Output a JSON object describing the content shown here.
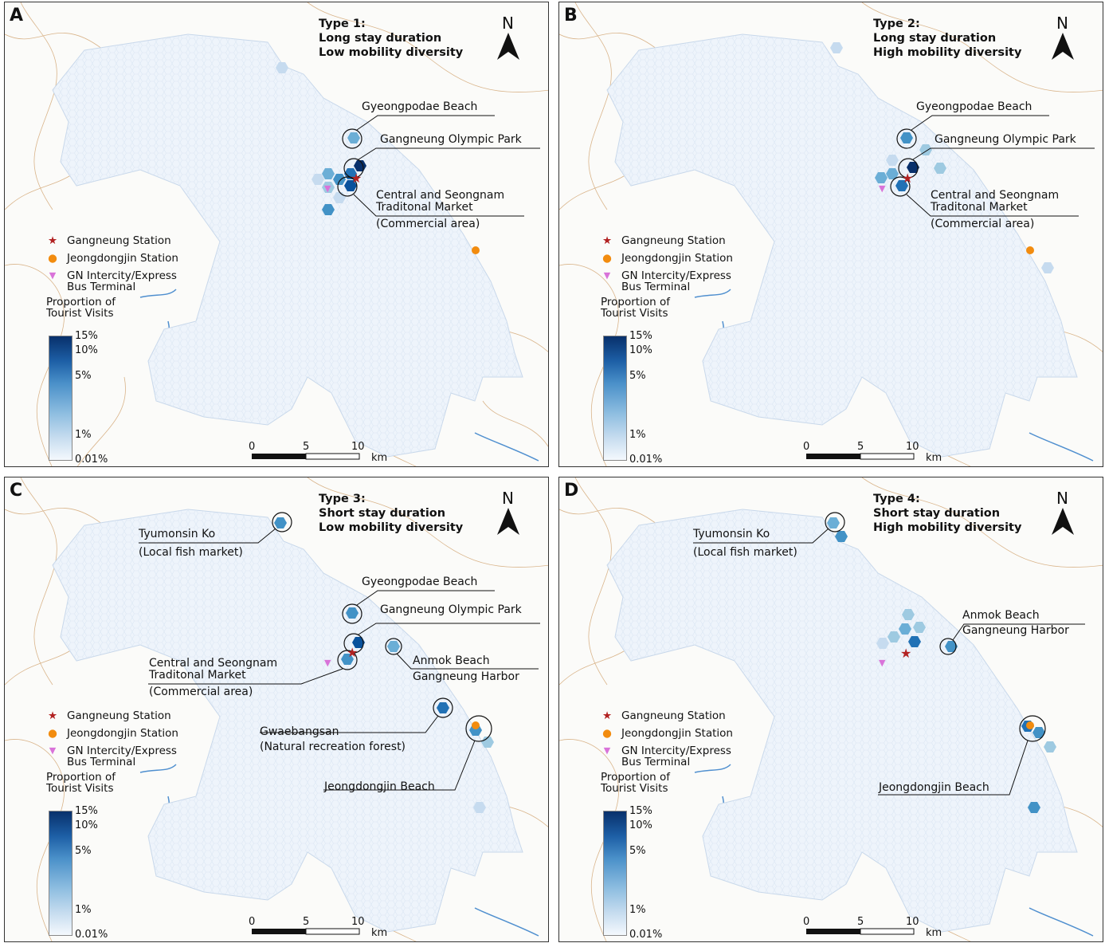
{
  "panels": [
    {
      "letter": "A",
      "title": [
        "Type 1:",
        "Long stay duration",
        "Low mobility diversity"
      ],
      "callouts": [
        "Gyeongpodae Beach",
        "Gangneung Olympic Park",
        "Central and Seongnam",
        "Traditonal Market",
        "(Commercial area)"
      ]
    },
    {
      "letter": "B",
      "title": [
        "Type 2:",
        "Long stay duration",
        "High mobility diversity"
      ],
      "callouts": [
        "Gyeongpodae Beach",
        "Gangneung Olympic Park",
        "Central and Seongnam",
        "Traditonal Market",
        "(Commercial area)"
      ]
    },
    {
      "letter": "C",
      "title": [
        "Type 3:",
        "Short stay duration",
        "Low mobility diversity"
      ],
      "callouts": [
        "Tyumonsin Ko",
        "(Local fish market)",
        "Gyeongpodae Beach",
        "Gangneung Olympic Park",
        "Anmok Beach",
        "Gangneung Harbor",
        "Central and Seongnam",
        "Traditonal Market",
        "(Commercial area)",
        "Gwaebangsan",
        "(Natural recreation forest)",
        "Jeongdongjin Beach"
      ]
    },
    {
      "letter": "D",
      "title": [
        "Type 4:",
        "Short stay duration",
        "High mobility diversity"
      ],
      "callouts": [
        "Tyumonsin Ko",
        "(Local fish market)",
        "Anmok Beach",
        "Gangneung Harbor",
        "Jeongdongjin Beach"
      ]
    }
  ],
  "north_label": "N",
  "legend": {
    "items": [
      {
        "symbol": "★",
        "label": "Gangneung Station",
        "color": "#b22222"
      },
      {
        "symbol": "●",
        "label": "Jeongdongjin Station",
        "color": "#f28c0f"
      },
      {
        "symbol": "▼",
        "label_line1": "GN Intercity/Express",
        "label_line2": "Bus Terminal",
        "color": "#d973d9"
      }
    ],
    "colorbar_title_1": "Proportion of",
    "colorbar_title_2": "Tourist Visits",
    "colorbar_ticks": [
      "15%",
      "10%",
      "5%",
      "1%",
      "0.01%"
    ]
  },
  "scalebar": {
    "labels": [
      "0",
      "5",
      "10"
    ],
    "unit": "km"
  },
  "colors": {
    "hex_fill": "#eef4fb",
    "hex_stroke": "#dbe6f3",
    "road": "#d9b48a",
    "water": "#4f8fcf"
  }
}
